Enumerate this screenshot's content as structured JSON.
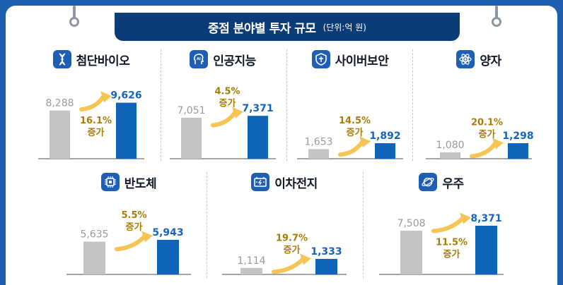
{
  "title": "중점 분야별 투자 규모",
  "unit": "(단위:억 원)",
  "colors": {
    "before": "#c4c4c4",
    "after": "#0f64b8",
    "arrow": "#f6c453",
    "growth": "#a87d07",
    "before_label": "#9a9a9a",
    "after_label": "#1565c0"
  },
  "panels": [
    {
      "name": "첨단바이오",
      "icon": "dna-icon",
      "before": "8,288",
      "after": "9,626",
      "growth": "16.1%",
      "growth_word": "증가"
    },
    {
      "name": "인공지능",
      "icon": "ai-head-icon",
      "before": "7,051",
      "after": "7,371",
      "growth": "4.5%",
      "growth_word": "증가"
    },
    {
      "name": "사이버보안",
      "icon": "shield-icon",
      "before": "1,653",
      "after": "1,892",
      "growth": "14.5%",
      "growth_word": "증가"
    },
    {
      "name": "양자",
      "icon": "atom-icon",
      "before": "1,080",
      "after": "1,298",
      "growth": "20.1%",
      "growth_word": "증가"
    },
    {
      "name": "반도체",
      "icon": "chip-icon",
      "before": "5,635",
      "after": "5,943",
      "growth": "5.5%",
      "growth_word": "증가"
    },
    {
      "name": "이차전지",
      "icon": "battery-icon",
      "before": "1,114",
      "after": "1,333",
      "growth": "19.7%",
      "growth_word": "증가"
    },
    {
      "name": "우주",
      "icon": "planet-icon",
      "before": "7,508",
      "after": "8,371",
      "growth": "11.5%",
      "growth_word": "증가"
    }
  ],
  "chart_data": [
    {
      "type": "bar",
      "title": "첨단바이오",
      "categories": [
        "",
        ""
      ],
      "values": [
        8288,
        9626
      ],
      "annotation": "16.1% 증가"
    },
    {
      "type": "bar",
      "title": "인공지능",
      "categories": [
        "",
        ""
      ],
      "values": [
        7051,
        7371
      ],
      "annotation": "4.5% 증가"
    },
    {
      "type": "bar",
      "title": "사이버보안",
      "categories": [
        "",
        ""
      ],
      "values": [
        1653,
        1892
      ],
      "annotation": "14.5% 증가"
    },
    {
      "type": "bar",
      "title": "양자",
      "categories": [
        "",
        ""
      ],
      "values": [
        1080,
        1298
      ],
      "annotation": "20.1% 증가"
    },
    {
      "type": "bar",
      "title": "반도체",
      "categories": [
        "",
        ""
      ],
      "values": [
        5635,
        5943
      ],
      "annotation": "5.5% 증가"
    },
    {
      "type": "bar",
      "title": "이차전지",
      "categories": [
        "",
        ""
      ],
      "values": [
        1114,
        1333
      ],
      "annotation": "19.7% 증가"
    },
    {
      "type": "bar",
      "title": "우주",
      "categories": [
        "",
        ""
      ],
      "values": [
        7508,
        8371
      ],
      "annotation": "11.5% 증가"
    }
  ]
}
